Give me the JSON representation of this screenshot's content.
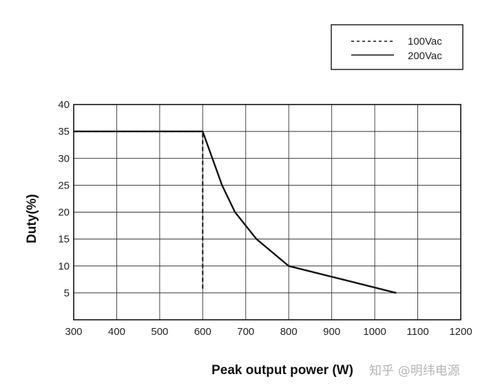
{
  "chart_data": {
    "type": "line",
    "xlabel": "Peak output power (W)",
    "ylabel": "Duty(%)",
    "xlim": [
      300,
      1200
    ],
    "ylim": [
      0,
      40
    ],
    "x_ticks": [
      300,
      400,
      500,
      600,
      700,
      800,
      900,
      1000,
      1100,
      1200
    ],
    "y_ticks": [
      5,
      10,
      15,
      20,
      25,
      30,
      35,
      40
    ],
    "grid": true,
    "legend_position": "top-right",
    "series": [
      {
        "name": "100Vac",
        "line_style": "dashed",
        "x": [
          300,
          600,
          600
        ],
        "y": [
          35,
          35,
          5.5
        ]
      },
      {
        "name": "200Vac",
        "line_style": "solid",
        "x": [
          300,
          600,
          645,
          675,
          725,
          800,
          900,
          1050
        ],
        "y": [
          35,
          35,
          25,
          20,
          15,
          10,
          8,
          5
        ]
      }
    ]
  },
  "watermark": "知乎 @明纬电源",
  "colors": {
    "line": "#111111",
    "grid": "#333333",
    "watermark": "#b5b5b5"
  }
}
